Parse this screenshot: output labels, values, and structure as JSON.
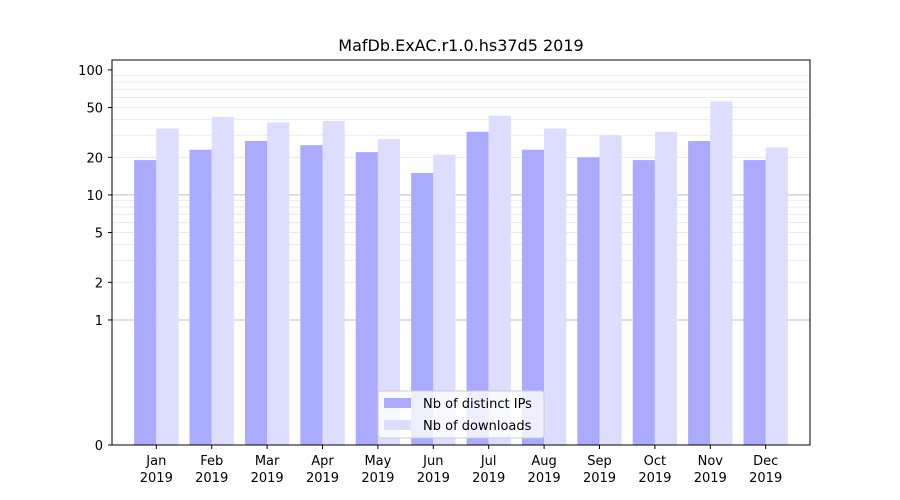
{
  "chart_data": {
    "type": "bar",
    "title": "MafDb.ExAC.r1.0.hs37d5 2019",
    "xlabel": "",
    "ylabel": "",
    "yscale": "symlog",
    "ylim": [
      0,
      120
    ],
    "yticks": [
      0,
      1,
      2,
      5,
      10,
      20,
      50,
      100
    ],
    "ytick_labels": [
      "0",
      "1",
      "2",
      "5",
      "10",
      "20",
      "50",
      "100"
    ],
    "categories": [
      "Jan",
      "Feb",
      "Mar",
      "Apr",
      "May",
      "Jun",
      "Jul",
      "Aug",
      "Sep",
      "Oct",
      "Nov",
      "Dec"
    ],
    "category_years": [
      "2019",
      "2019",
      "2019",
      "2019",
      "2019",
      "2019",
      "2019",
      "2019",
      "2019",
      "2019",
      "2019",
      "2019"
    ],
    "series": [
      {
        "name": "Nb of distinct IPs",
        "color": "#aaaaff",
        "values": [
          19,
          23,
          27,
          25,
          22,
          15,
          32,
          23,
          20,
          19,
          27,
          19
        ]
      },
      {
        "name": "Nb of downloads",
        "color": "#ddddff",
        "values": [
          34,
          42,
          38,
          39,
          28,
          21,
          43,
          34,
          30,
          32,
          56,
          24
        ]
      }
    ],
    "legend_position": "lower-center",
    "grid": true
  }
}
